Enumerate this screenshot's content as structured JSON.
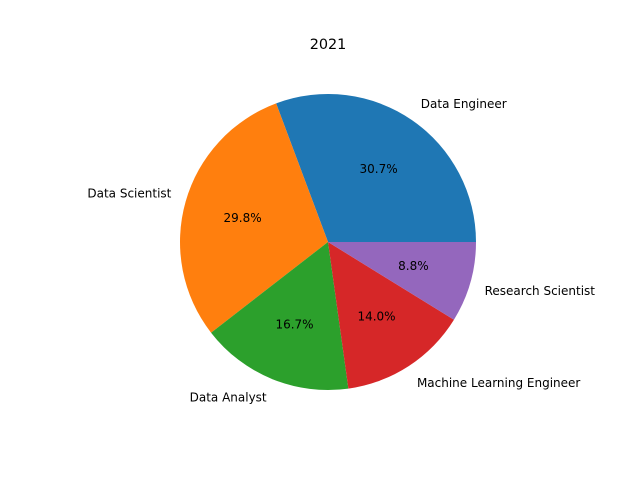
{
  "chart_data": {
    "type": "pie",
    "title": "2021",
    "labels": [
      "Data Engineer",
      "Data Scientist",
      "Data Analyst",
      "Machine Learning Engineer",
      "Research Scientist"
    ],
    "values": [
      30.7,
      29.8,
      16.7,
      14.0,
      8.8
    ],
    "percent_labels": [
      "30.7%",
      "29.8%",
      "16.7%",
      "14.0%",
      "8.8%"
    ],
    "colors": [
      "#1f77b4",
      "#ff7f0e",
      "#2ca02c",
      "#d62728",
      "#9467bd"
    ],
    "start_angle_deg": 0,
    "direction": "counterclockwise",
    "legend": "none"
  }
}
